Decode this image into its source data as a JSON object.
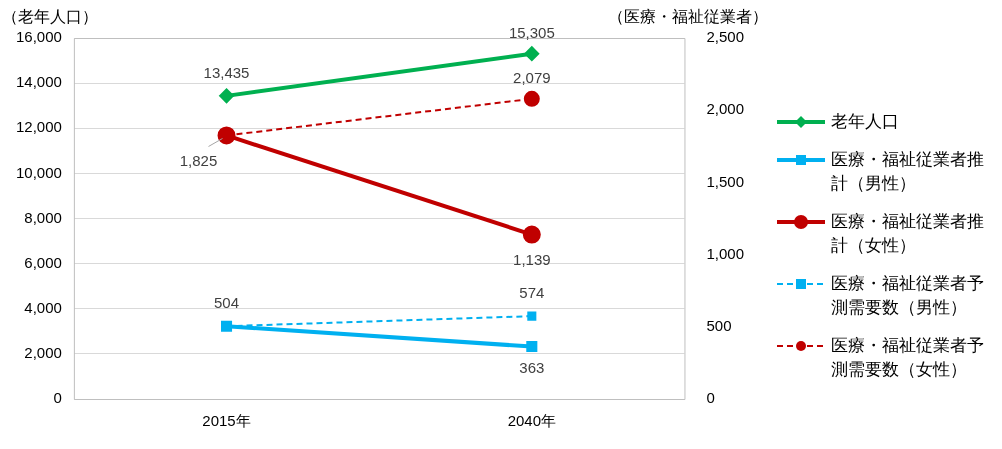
{
  "chart_data": {
    "type": "line",
    "ylabel": "（老年人口）",
    "y2label": "（医療・福祉従業者）",
    "categories": [
      "2015年",
      "2040年"
    ],
    "ylim": [
      0,
      16000
    ],
    "yticks": [
      0,
      {
        "value": 2000,
        "label": "2,000"
      },
      {
        "value": 4000,
        "label": "4,000"
      },
      {
        "value": 6000,
        "label": "6,000"
      },
      {
        "value": 8000,
        "label": "8,000"
      },
      {
        "value": 10000,
        "label": "10,000"
      },
      {
        "value": 12000,
        "label": "12,000"
      },
      {
        "value": 14000,
        "label": "14,000"
      },
      {
        "value": 16000,
        "label": "16,000"
      }
    ],
    "y2lim": [
      0,
      2500
    ],
    "y2ticks": [
      0,
      500,
      {
        "value": 1000,
        "label": "1,000"
      },
      {
        "value": 1500,
        "label": "1,500"
      },
      {
        "value": 2000,
        "label": "2,000"
      },
      {
        "value": 2500,
        "label": "2,500"
      }
    ],
    "grid": "y",
    "legend": "right",
    "series": [
      {
        "name": "老年人口",
        "color": "#00b050",
        "values": [
          13435,
          15305
        ],
        "marker": "diamond",
        "line_style": "solid",
        "value_labels": [
          "13,435",
          "15,305"
        ]
      },
      {
        "name": "医療・福祉従業者推計（男性）",
        "color": "#00b0f0",
        "values": [
          504,
          363
        ],
        "axis": "y2",
        "marker": "square",
        "line_style": "solid",
        "value_labels": [
          "504",
          "363"
        ]
      },
      {
        "name": "医療・福祉従業者推計（女性）",
        "color": "#c00000",
        "values": [
          1825,
          1139
        ],
        "axis": "y2",
        "marker": "circle",
        "line_style": "solid",
        "value_labels": [
          "1,825",
          "1,139"
        ]
      },
      {
        "name": "医療・福祉従業者予測需要数（男性）",
        "color": "#00b0f0",
        "values": [
          504,
          574
        ],
        "axis": "y2",
        "marker": "square",
        "line_style": "dashed",
        "value_labels": [
          null,
          "574"
        ]
      },
      {
        "name": "医療・福祉従業者予測需要数（女性）",
        "color": "#c00000",
        "values": [
          1825,
          2079
        ],
        "axis": "y2",
        "marker": "circle",
        "line_style": "dashed",
        "value_labels": [
          null,
          "2,079"
        ]
      }
    ]
  }
}
